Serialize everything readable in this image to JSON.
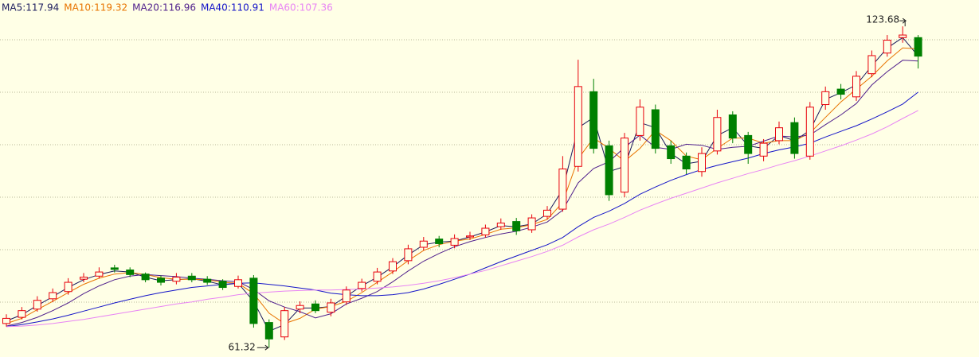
{
  "chart_data": {
    "type": "candlestick",
    "ylim": [
      59.5,
      128.8
    ],
    "grid": true,
    "up_color": "#e8000b",
    "down_color": "#008000",
    "open": [
      66.0,
      67.2,
      68.8,
      70.8,
      72.2,
      74.6,
      75.2,
      76.8,
      76.4,
      75.6,
      74.8,
      74.2,
      75.2,
      74.6,
      74.2,
      73.2,
      74.8,
      66.2,
      63.4,
      68.8,
      69.8,
      68.2,
      70.2,
      72.8,
      74.2,
      76.2,
      78.2,
      80.8,
      82.4,
      81.2,
      82.8,
      83.2,
      84.8,
      85.8,
      84.2,
      86.8,
      88.2,
      96.5,
      111.0,
      100.5,
      91.5,
      102.5,
      107.5,
      100.5,
      98.5,
      95.5,
      99.5,
      106.5,
      102.5,
      98.5,
      101.5,
      105.0,
      98.5,
      108.5,
      111.5,
      110.0,
      114.5,
      118.5,
      121.5,
      121.5
    ],
    "high": [
      67.8,
      69.2,
      71.3,
      72.8,
      74.8,
      75.8,
      76.9,
      77.4,
      76.9,
      75.9,
      75.3,
      75.8,
      75.8,
      75.2,
      74.6,
      75.3,
      75.4,
      66.8,
      69.2,
      70.3,
      70.5,
      70.8,
      73.2,
      74.7,
      76.8,
      78.7,
      81.3,
      82.8,
      83.0,
      83.3,
      83.8,
      85.2,
      86.4,
      86.5,
      87.2,
      88.8,
      98.5,
      117.2,
      113.5,
      101.5,
      103.0,
      109.5,
      108.5,
      101.5,
      99.2,
      100.2,
      107.5,
      107.2,
      103.2,
      101.8,
      105.2,
      106.0,
      109.0,
      112.0,
      112.5,
      115.0,
      119.0,
      122.0,
      123.68,
      122.0
    ],
    "low": [
      65.4,
      66.8,
      68.3,
      70.2,
      71.6,
      74.0,
      74.7,
      75.9,
      75.0,
      74.0,
      73.4,
      73.6,
      74.0,
      73.5,
      72.5,
      72.8,
      65.2,
      61.32,
      62.8,
      68.0,
      68.0,
      67.4,
      69.6,
      72.2,
      73.6,
      75.6,
      77.5,
      80.2,
      80.8,
      80.6,
      82.2,
      82.7,
      84.2,
      83.2,
      83.6,
      86.2,
      87.7,
      95.5,
      99.0,
      89.8,
      90.5,
      101.5,
      99.0,
      97.0,
      95.0,
      94.5,
      98.8,
      101.0,
      97.0,
      97.5,
      100.8,
      98.0,
      97.8,
      107.5,
      109.5,
      109.2,
      113.8,
      117.8,
      120.5,
      115.5
    ],
    "close": [
      67.0,
      68.5,
      70.5,
      72.0,
      74.0,
      75.0,
      76.0,
      76.5,
      75.5,
      74.5,
      74.0,
      75.0,
      74.5,
      74.0,
      73.0,
      74.5,
      66.0,
      63.0,
      68.5,
      69.5,
      68.5,
      70.0,
      72.5,
      74.0,
      76.0,
      78.0,
      80.5,
      82.0,
      81.5,
      82.5,
      83.0,
      84.5,
      85.5,
      84.0,
      86.5,
      88.0,
      96.0,
      112.0,
      100.0,
      91.0,
      102.0,
      108.0,
      100.0,
      98.0,
      96.0,
      99.0,
      106.0,
      102.0,
      99.0,
      101.0,
      104.0,
      99.0,
      108.0,
      111.0,
      110.5,
      114.0,
      118.0,
      121.0,
      122.0,
      117.9
    ],
    "series": [
      {
        "name": "MA5:117.94",
        "color": "#1c1c5e",
        "values": [
          66.5,
          67.7,
          69.5,
          71.2,
          73,
          74.5,
          75.5,
          76.2,
          76,
          75,
          74.3,
          74.5,
          74.7,
          74.2,
          73.5,
          73.8,
          70.3,
          64.5,
          65.8,
          69,
          69,
          69.3,
          71.3,
          73.3,
          75,
          77,
          79.3,
          81.3,
          81.8,
          82,
          82.8,
          83.8,
          85,
          84.8,
          85.3,
          87.3,
          92,
          104,
          106,
          95.5,
          96.5,
          105,
          104,
          99,
          97,
          97.5,
          102.5,
          104,
          100.5,
          100,
          102.5,
          101.5,
          103.5,
          109.5,
          110.8,
          112.3,
          116,
          119.5,
          121.5,
          117.94
        ]
      },
      {
        "name": "MA10:119.32",
        "color": "#e87400",
        "values": [
          66,
          67,
          68.7,
          70.3,
          72,
          73.6,
          74.8,
          75.6,
          75.9,
          75.5,
          74.9,
          74.6,
          74.6,
          74.5,
          74,
          73.8,
          71.8,
          68,
          66,
          67,
          68.8,
          69.3,
          70.3,
          72,
          74,
          76,
          78.2,
          80.2,
          81.3,
          82,
          82.4,
          83.3,
          84.3,
          84.6,
          85.2,
          86.2,
          89.5,
          98,
          102,
          100,
          97.5,
          100,
          103.5,
          101.5,
          98.5,
          97.8,
          100,
          102,
          102,
          101,
          101.5,
          101.5,
          103,
          106,
          109,
          111.5,
          114,
          117,
          119.5,
          119.32
        ]
      },
      {
        "name": "MA20:116.96",
        "color": "#50208c",
        "values": [
          65.5,
          66.2,
          67.2,
          68.5,
          70,
          71.8,
          73.3,
          74.5,
          75.2,
          75.5,
          75.3,
          75.1,
          74.8,
          74.6,
          74.3,
          74.1,
          72.6,
          70.4,
          69.2,
          68.3,
          67.1,
          67.9,
          69.8,
          70.9,
          72.2,
          74.1,
          76.2,
          78.1,
          79.6,
          80.9,
          81.9,
          82.7,
          83.4,
          83.9,
          84.7,
          85.7,
          88,
          93.3,
          96.1,
          97.4,
          100.2,
          102.6,
          100.2,
          99.8,
          100.8,
          100.6,
          99.8,
          100.2,
          100.4,
          101.4,
          102.4,
          102.2,
          102.6,
          104.6,
          106.5,
          108.7,
          112.3,
          114.9,
          117.1,
          116.96
        ]
      },
      {
        "name": "MA40:110.91",
        "color": "#1414c8",
        "values": [
          65.4,
          65.8,
          66.3,
          66.9,
          67.6,
          68.4,
          69.2,
          70,
          70.7,
          71.4,
          72,
          72.5,
          73,
          73.3,
          73.6,
          73.8,
          73.9,
          73.6,
          73.3,
          72.9,
          72.5,
          71.9,
          71.6,
          71.4,
          71.4,
          71.6,
          72,
          72.7,
          73.6,
          74.6,
          75.6,
          76.8,
          78,
          79.1,
          80.2,
          81.3,
          82.7,
          84.8,
          86.6,
          87.8,
          89.3,
          91.1,
          92.5,
          93.8,
          94.9,
          95.9,
          96.7,
          97.4,
          98.1,
          99,
          99.7,
          100.3,
          101,
          102.2,
          103.3,
          104.4,
          105.7,
          107.1,
          108.6,
          110.91
        ]
      },
      {
        "name": "MA60:107.36",
        "color": "#e884f4",
        "values": [
          65.4,
          65.5,
          65.7,
          66,
          66.4,
          66.8,
          67.3,
          67.8,
          68.3,
          68.8,
          69.3,
          69.8,
          70.2,
          70.7,
          71.1,
          71.6,
          71.9,
          72.1,
          72.3,
          72.4,
          72.5,
          72.5,
          72.6,
          72.7,
          72.9,
          73.1,
          73.4,
          73.8,
          74.3,
          74.9,
          75.6,
          76.3,
          77.2,
          78.1,
          79,
          80,
          81.2,
          82.8,
          84.2,
          85.3,
          86.6,
          88,
          89.2,
          90.3,
          91.3,
          92.3,
          93.3,
          94.2,
          95.1,
          95.9,
          96.8,
          97.6,
          98.5,
          99.5,
          100.5,
          101.6,
          102.8,
          104.2,
          105.8,
          107.36
        ]
      }
    ]
  }
}
